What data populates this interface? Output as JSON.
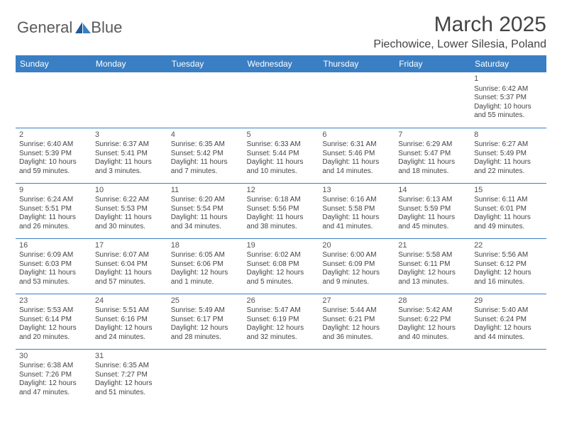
{
  "logo": {
    "text_general": "General",
    "text_blue": "Blue"
  },
  "header": {
    "month_title": "March 2025",
    "location": "Piechowice, Lower Silesia, Poland"
  },
  "colors": {
    "header_bg": "#3a7fc4",
    "header_text": "#ffffff",
    "cell_border": "#3a7fc4",
    "text": "#444444",
    "logo_gray": "#5a5a5a",
    "logo_blue": "#2a6fb5"
  },
  "days_of_week": [
    "Sunday",
    "Monday",
    "Tuesday",
    "Wednesday",
    "Thursday",
    "Friday",
    "Saturday"
  ],
  "weeks": [
    [
      null,
      null,
      null,
      null,
      null,
      null,
      {
        "n": "1",
        "sr": "Sunrise: 6:42 AM",
        "ss": "Sunset: 5:37 PM",
        "dl": "Daylight: 10 hours and 55 minutes."
      }
    ],
    [
      {
        "n": "2",
        "sr": "Sunrise: 6:40 AM",
        "ss": "Sunset: 5:39 PM",
        "dl": "Daylight: 10 hours and 59 minutes."
      },
      {
        "n": "3",
        "sr": "Sunrise: 6:37 AM",
        "ss": "Sunset: 5:41 PM",
        "dl": "Daylight: 11 hours and 3 minutes."
      },
      {
        "n": "4",
        "sr": "Sunrise: 6:35 AM",
        "ss": "Sunset: 5:42 PM",
        "dl": "Daylight: 11 hours and 7 minutes."
      },
      {
        "n": "5",
        "sr": "Sunrise: 6:33 AM",
        "ss": "Sunset: 5:44 PM",
        "dl": "Daylight: 11 hours and 10 minutes."
      },
      {
        "n": "6",
        "sr": "Sunrise: 6:31 AM",
        "ss": "Sunset: 5:46 PM",
        "dl": "Daylight: 11 hours and 14 minutes."
      },
      {
        "n": "7",
        "sr": "Sunrise: 6:29 AM",
        "ss": "Sunset: 5:47 PM",
        "dl": "Daylight: 11 hours and 18 minutes."
      },
      {
        "n": "8",
        "sr": "Sunrise: 6:27 AM",
        "ss": "Sunset: 5:49 PM",
        "dl": "Daylight: 11 hours and 22 minutes."
      }
    ],
    [
      {
        "n": "9",
        "sr": "Sunrise: 6:24 AM",
        "ss": "Sunset: 5:51 PM",
        "dl": "Daylight: 11 hours and 26 minutes."
      },
      {
        "n": "10",
        "sr": "Sunrise: 6:22 AM",
        "ss": "Sunset: 5:53 PM",
        "dl": "Daylight: 11 hours and 30 minutes."
      },
      {
        "n": "11",
        "sr": "Sunrise: 6:20 AM",
        "ss": "Sunset: 5:54 PM",
        "dl": "Daylight: 11 hours and 34 minutes."
      },
      {
        "n": "12",
        "sr": "Sunrise: 6:18 AM",
        "ss": "Sunset: 5:56 PM",
        "dl": "Daylight: 11 hours and 38 minutes."
      },
      {
        "n": "13",
        "sr": "Sunrise: 6:16 AM",
        "ss": "Sunset: 5:58 PM",
        "dl": "Daylight: 11 hours and 41 minutes."
      },
      {
        "n": "14",
        "sr": "Sunrise: 6:13 AM",
        "ss": "Sunset: 5:59 PM",
        "dl": "Daylight: 11 hours and 45 minutes."
      },
      {
        "n": "15",
        "sr": "Sunrise: 6:11 AM",
        "ss": "Sunset: 6:01 PM",
        "dl": "Daylight: 11 hours and 49 minutes."
      }
    ],
    [
      {
        "n": "16",
        "sr": "Sunrise: 6:09 AM",
        "ss": "Sunset: 6:03 PM",
        "dl": "Daylight: 11 hours and 53 minutes."
      },
      {
        "n": "17",
        "sr": "Sunrise: 6:07 AM",
        "ss": "Sunset: 6:04 PM",
        "dl": "Daylight: 11 hours and 57 minutes."
      },
      {
        "n": "18",
        "sr": "Sunrise: 6:05 AM",
        "ss": "Sunset: 6:06 PM",
        "dl": "Daylight: 12 hours and 1 minute."
      },
      {
        "n": "19",
        "sr": "Sunrise: 6:02 AM",
        "ss": "Sunset: 6:08 PM",
        "dl": "Daylight: 12 hours and 5 minutes."
      },
      {
        "n": "20",
        "sr": "Sunrise: 6:00 AM",
        "ss": "Sunset: 6:09 PM",
        "dl": "Daylight: 12 hours and 9 minutes."
      },
      {
        "n": "21",
        "sr": "Sunrise: 5:58 AM",
        "ss": "Sunset: 6:11 PM",
        "dl": "Daylight: 12 hours and 13 minutes."
      },
      {
        "n": "22",
        "sr": "Sunrise: 5:56 AM",
        "ss": "Sunset: 6:12 PM",
        "dl": "Daylight: 12 hours and 16 minutes."
      }
    ],
    [
      {
        "n": "23",
        "sr": "Sunrise: 5:53 AM",
        "ss": "Sunset: 6:14 PM",
        "dl": "Daylight: 12 hours and 20 minutes."
      },
      {
        "n": "24",
        "sr": "Sunrise: 5:51 AM",
        "ss": "Sunset: 6:16 PM",
        "dl": "Daylight: 12 hours and 24 minutes."
      },
      {
        "n": "25",
        "sr": "Sunrise: 5:49 AM",
        "ss": "Sunset: 6:17 PM",
        "dl": "Daylight: 12 hours and 28 minutes."
      },
      {
        "n": "26",
        "sr": "Sunrise: 5:47 AM",
        "ss": "Sunset: 6:19 PM",
        "dl": "Daylight: 12 hours and 32 minutes."
      },
      {
        "n": "27",
        "sr": "Sunrise: 5:44 AM",
        "ss": "Sunset: 6:21 PM",
        "dl": "Daylight: 12 hours and 36 minutes."
      },
      {
        "n": "28",
        "sr": "Sunrise: 5:42 AM",
        "ss": "Sunset: 6:22 PM",
        "dl": "Daylight: 12 hours and 40 minutes."
      },
      {
        "n": "29",
        "sr": "Sunrise: 5:40 AM",
        "ss": "Sunset: 6:24 PM",
        "dl": "Daylight: 12 hours and 44 minutes."
      }
    ],
    [
      {
        "n": "30",
        "sr": "Sunrise: 6:38 AM",
        "ss": "Sunset: 7:26 PM",
        "dl": "Daylight: 12 hours and 47 minutes."
      },
      {
        "n": "31",
        "sr": "Sunrise: 6:35 AM",
        "ss": "Sunset: 7:27 PM",
        "dl": "Daylight: 12 hours and 51 minutes."
      },
      null,
      null,
      null,
      null,
      null
    ]
  ]
}
